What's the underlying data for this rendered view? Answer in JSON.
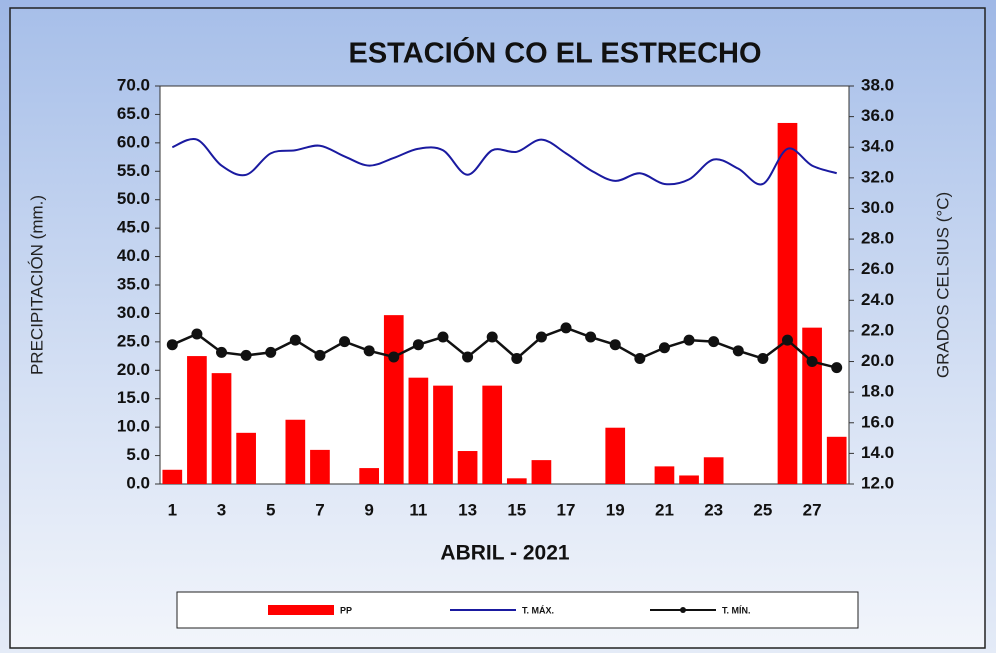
{
  "chart_data": {
    "type": "bar",
    "title": "ESTACIÓN CO EL ESTRECHO",
    "x_label": "ABRIL  - 2021",
    "y_label": "PRECIPITACIÓN (mm.)",
    "y2_label": "GRADOS CELSIUS (°C)",
    "categories": [
      "1",
      null,
      "3",
      null,
      "5",
      null,
      "7",
      null,
      "9",
      null,
      "11",
      null,
      "13",
      null,
      "15",
      null,
      "17",
      null,
      "19",
      null,
      "21",
      null,
      "23",
      null,
      "25",
      null,
      "27",
      null
    ],
    "ylim": [
      0,
      70
    ],
    "yticks": [
      {
        "value": 0,
        "label": "0.0"
      },
      {
        "value": 5,
        "label": "5.0"
      },
      {
        "value": 10,
        "label": "10.0"
      },
      {
        "value": 15,
        "label": "15.0"
      },
      {
        "value": 20,
        "label": "20.0"
      },
      {
        "value": 25,
        "label": "25.0"
      },
      {
        "value": 30,
        "label": "30.0"
      },
      {
        "value": 35,
        "label": "35.0"
      },
      {
        "value": 40,
        "label": "40.0"
      },
      {
        "value": 45,
        "label": "45.0"
      },
      {
        "value": 50,
        "label": "50.0"
      },
      {
        "value": 55,
        "label": "55.0"
      },
      {
        "value": 60,
        "label": "60.0"
      },
      {
        "value": 65,
        "label": "65.0"
      },
      {
        "value": 70,
        "label": "70.0"
      }
    ],
    "y2lim": [
      12,
      38
    ],
    "y2ticks": [
      {
        "value": 12,
        "label": "12.0"
      },
      {
        "value": 14,
        "label": "14.0"
      },
      {
        "value": 16,
        "label": "16.0"
      },
      {
        "value": 18,
        "label": "18.0"
      },
      {
        "value": 20,
        "label": "20.0"
      },
      {
        "value": 22,
        "label": "22.0"
      },
      {
        "value": 24,
        "label": "24.0"
      },
      {
        "value": 26,
        "label": "26.0"
      },
      {
        "value": 28,
        "label": "28.0"
      },
      {
        "value": 30,
        "label": "30.0"
      },
      {
        "value": 32,
        "label": "32.0"
      },
      {
        "value": 34,
        "label": "34.0"
      },
      {
        "value": 36,
        "label": "36.0"
      },
      {
        "value": 38,
        "label": "38.0"
      }
    ],
    "legend": "bottom",
    "series": [
      {
        "name": "PP",
        "type": "bar",
        "color": "#ff0000",
        "values": [
          2.5,
          22.5,
          19.5,
          9.0,
          0,
          11.3,
          6.0,
          0,
          2.8,
          29.7,
          18.7,
          17.3,
          5.8,
          17.3,
          1.0,
          4.2,
          0,
          0,
          9.9,
          0,
          3.1,
          1.5,
          4.7,
          0,
          0,
          63.5,
          27.5,
          8.3
        ]
      },
      {
        "name": "T. MÁX.",
        "type": "line",
        "axis": "y2",
        "color": "#1a1aa0",
        "smooth": true,
        "values": [
          34.0,
          34.5,
          32.8,
          32.2,
          33.6,
          33.8,
          34.1,
          33.4,
          32.8,
          33.3,
          33.9,
          33.8,
          32.2,
          33.8,
          33.7,
          34.5,
          33.6,
          32.5,
          31.8,
          32.3,
          31.6,
          31.9,
          33.2,
          32.6,
          31.6,
          33.9,
          32.8,
          32.3
        ]
      },
      {
        "name": "T. MÍN.",
        "type": "line",
        "axis": "y2",
        "color": "#111111",
        "marker": true,
        "values": [
          21.1,
          21.8,
          20.6,
          20.4,
          20.6,
          21.4,
          20.4,
          21.3,
          20.7,
          20.3,
          21.1,
          21.6,
          20.3,
          21.6,
          20.2,
          21.6,
          22.2,
          21.6,
          21.1,
          20.2,
          20.9,
          21.4,
          21.3,
          20.7,
          20.2,
          21.4,
          20.0,
          19.6
        ]
      }
    ]
  }
}
